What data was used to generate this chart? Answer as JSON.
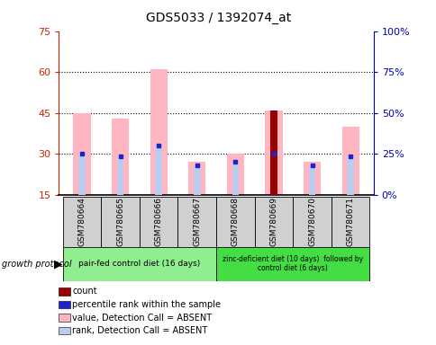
{
  "title": "GDS5033 / 1392074_at",
  "samples": [
    "GSM780664",
    "GSM780665",
    "GSM780666",
    "GSM780667",
    "GSM780668",
    "GSM780669",
    "GSM780670",
    "GSM780671"
  ],
  "value_bars": [
    45,
    43,
    61,
    27,
    30,
    46,
    27,
    40
  ],
  "rank_bars": [
    30,
    29,
    33,
    26,
    27,
    30,
    26,
    29
  ],
  "count_bar_idx": 5,
  "count_value": 46,
  "percentile_rank_vals": [
    30,
    29,
    33,
    26,
    27,
    30,
    26,
    29
  ],
  "ylim_left": [
    15,
    75
  ],
  "ylim_right": [
    0,
    100
  ],
  "yticks_left": [
    15,
    30,
    45,
    60,
    75
  ],
  "yticks_right": [
    0,
    25,
    50,
    75,
    100
  ],
  "ytick_labels_right": [
    "0%",
    "25%",
    "50%",
    "75%",
    "100%"
  ],
  "hlines": [
    30,
    45,
    60
  ],
  "group1_label": "pair-fed control diet (16 days)",
  "group2_label": "zinc-deficient diet (10 days)  followed by\ncontrol diet (6 days)",
  "group_protocol_label": "growth protocol",
  "group1_color": "#90EE90",
  "group2_color": "#44DD44",
  "value_bar_color": "#FFB6C1",
  "count_bar_color": "#990000",
  "rank_absent_color": "#BBCCEE",
  "blue_square_color": "#2222CC",
  "axis_color_left": "#CC2200",
  "axis_color_right": "#0000BB",
  "sample_box_color": "#D0D0D0",
  "legend_items": [
    {
      "label": "count",
      "color": "#990000"
    },
    {
      "label": "percentile rank within the sample",
      "color": "#2222CC"
    },
    {
      "label": "value, Detection Call = ABSENT",
      "color": "#FFB6C1"
    },
    {
      "label": "rank, Detection Call = ABSENT",
      "color": "#BBCCEE"
    }
  ]
}
